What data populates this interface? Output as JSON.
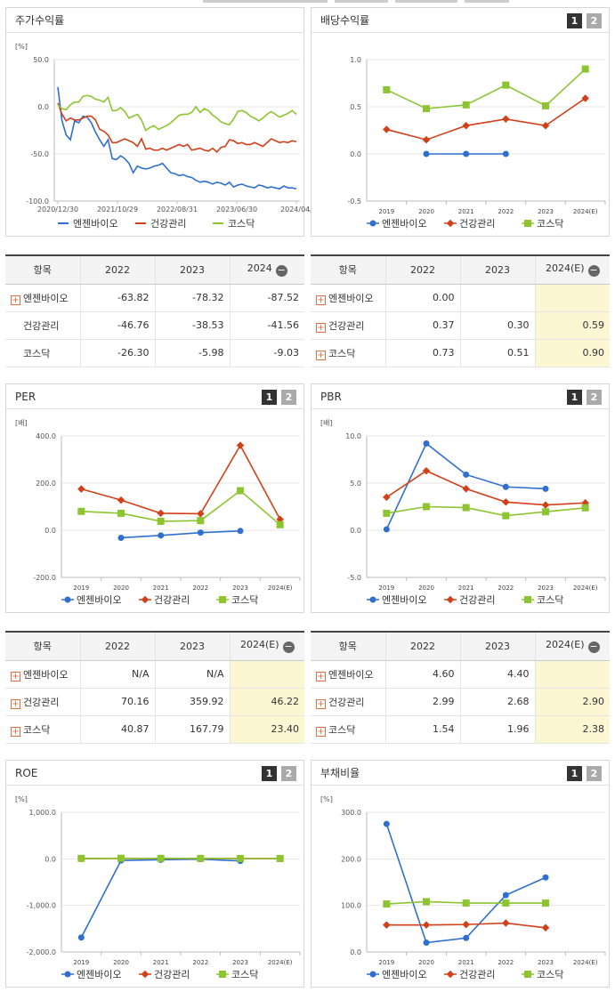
{
  "panels": {
    "price": {
      "title": "주가수익률"
    },
    "dividend": {
      "title": "배당수익률"
    },
    "per": {
      "title": "PER"
    },
    "pbr": {
      "title": "PBR"
    },
    "roe": {
      "title": "ROE"
    },
    "debt": {
      "title": "부채비율"
    }
  },
  "page_buttons": [
    "1",
    "2"
  ],
  "table_header_label": "항목",
  "legend_names": [
    "엔젠바이오",
    "건강관리",
    "코스닥"
  ],
  "colors": {
    "s1": "#2f6fd0",
    "s2": "#d2401a",
    "s3": "#8cc530"
  },
  "chart_data": [
    {
      "id": "price",
      "type": "line",
      "title": "",
      "unit": "[%]",
      "ylim": [
        -100,
        50
      ],
      "yticks": [
        "50.0",
        "0.0",
        "-50.0",
        "-100.0"
      ],
      "ytick_vals": [
        50,
        0,
        -50,
        -100
      ],
      "xticks": [
        "2020/12/30",
        "2021/10/29",
        "2022/08/31",
        "2023/06/30",
        "2024/04/"
      ],
      "n_points": 58,
      "series": [
        {
          "name": "엔젠바이오",
          "values": [
            21,
            -15,
            -30,
            -35,
            -15,
            -17,
            -10,
            -11,
            -17,
            -27,
            -35,
            -42,
            -35,
            -55,
            -56,
            -52,
            -55,
            -60,
            -70,
            -63,
            -65,
            -66,
            -65,
            -63,
            -62,
            -60,
            -65,
            -70,
            -71,
            -73,
            -72,
            -74,
            -75,
            -78,
            -80,
            -79,
            -80,
            -82,
            -80,
            -81,
            -83,
            -80,
            -85,
            -83,
            -82,
            -84,
            -85,
            -86,
            -83,
            -84,
            -86,
            -85,
            -86,
            -87,
            -84,
            -86,
            -86,
            -87
          ]
        },
        {
          "name": "건강관리",
          "values": [
            4,
            -8,
            -15,
            -12,
            -14,
            -14,
            -12,
            -10,
            -10,
            -14,
            -24,
            -26,
            -30,
            -38,
            -38,
            -36,
            -34,
            -36,
            -38,
            -42,
            -34,
            -45,
            -44,
            -46,
            -46,
            -44,
            -46,
            -44,
            -42,
            -40,
            -42,
            -40,
            -46,
            -45,
            -44,
            -46,
            -47,
            -44,
            -48,
            -43,
            -42,
            -35,
            -36,
            -39,
            -38,
            -40,
            -40,
            -38,
            -40,
            -42,
            -38,
            -34,
            -36,
            -38,
            -37,
            -38,
            -36,
            -37
          ]
        },
        {
          "name": "코스닥",
          "values": [
            2,
            -2,
            -3,
            2,
            5,
            5,
            11,
            12,
            11,
            8,
            7,
            5,
            10,
            -4,
            -4,
            -1,
            -5,
            -12,
            -10,
            -8,
            -14,
            -25,
            -22,
            -20,
            -24,
            -22,
            -20,
            -17,
            -13,
            -9,
            -8,
            -8,
            -6,
            0,
            -6,
            -2,
            -4,
            -9,
            -12,
            -16,
            -18,
            -19,
            -13,
            -5,
            -4,
            -6,
            -10,
            -12,
            -15,
            -12,
            -8,
            -5,
            -8,
            -11,
            -9,
            -7,
            -4,
            -8
          ]
        }
      ]
    },
    {
      "id": "dividend",
      "type": "line",
      "title": "",
      "unit": "",
      "ylim": [
        -0.5,
        1.0
      ],
      "yticks": [
        "1.0",
        "0.5",
        "0.0",
        "-0.5"
      ],
      "ytick_vals": [
        1.0,
        0.5,
        0.0,
        -0.5
      ],
      "categories": [
        "2019",
        "2020",
        "2021",
        "2022",
        "2023",
        "2024(E)"
      ],
      "series": [
        {
          "name": "엔젠바이오",
          "values": [
            null,
            0.0,
            0.0,
            0.0,
            null,
            null
          ]
        },
        {
          "name": "건강관리",
          "values": [
            0.26,
            0.15,
            0.3,
            0.37,
            0.3,
            0.59
          ]
        },
        {
          "name": "코스닥",
          "values": [
            0.68,
            0.48,
            0.52,
            0.73,
            0.51,
            0.9
          ]
        }
      ]
    },
    {
      "id": "per",
      "type": "line",
      "title": "",
      "unit": "[배]",
      "ylim": [
        -200,
        400
      ],
      "yticks": [
        "400.0",
        "200.0",
        "0.0",
        "-200.0"
      ],
      "ytick_vals": [
        400,
        200,
        0,
        -200
      ],
      "categories": [
        "2019",
        "2020",
        "2021",
        "2022",
        "2023",
        "2024(E)"
      ],
      "series": [
        {
          "name": "엔젠바이오",
          "values": [
            null,
            -32,
            -22,
            -10,
            -3,
            null
          ]
        },
        {
          "name": "건강관리",
          "values": [
            175,
            128,
            72,
            70.16,
            359.92,
            46.22
          ]
        },
        {
          "name": "코스닥",
          "values": [
            80,
            72,
            38,
            40.87,
            167.79,
            23.4
          ]
        }
      ]
    },
    {
      "id": "pbr",
      "type": "line",
      "title": "",
      "unit": "[배]",
      "ylim": [
        -5,
        10
      ],
      "yticks": [
        "10.0",
        "5.0",
        "0.0",
        "-5.0"
      ],
      "ytick_vals": [
        10,
        5,
        0,
        -5
      ],
      "categories": [
        "2019",
        "2020",
        "2021",
        "2022",
        "2023",
        "2024(E)"
      ],
      "series": [
        {
          "name": "엔젠바이오",
          "values": [
            0.1,
            9.2,
            5.9,
            4.6,
            4.4,
            null
          ]
        },
        {
          "name": "건강관리",
          "values": [
            3.5,
            6.3,
            4.4,
            2.99,
            2.68,
            2.9
          ]
        },
        {
          "name": "코스닥",
          "values": [
            1.8,
            2.5,
            2.4,
            1.54,
            1.96,
            2.38
          ]
        }
      ]
    },
    {
      "id": "roe",
      "type": "line",
      "title": "",
      "unit": "[%]",
      "ylim": [
        -2000,
        1000
      ],
      "yticks": [
        "1,000.0",
        "0.0",
        "-1,000.0",
        "-2,000.0"
      ],
      "ytick_vals": [
        1000,
        0,
        -1000,
        -2000
      ],
      "categories": [
        "2019",
        "2020",
        "2021",
        "2022",
        "2023",
        "2024(E)"
      ],
      "series": [
        {
          "name": "엔젠바이오",
          "values": [
            -1690,
            -35,
            -20,
            -8,
            -45,
            null
          ]
        },
        {
          "name": "건강관리",
          "values": [
            5,
            8,
            8,
            8,
            6,
            6
          ]
        },
        {
          "name": "코스닥",
          "values": [
            10,
            12,
            10,
            9,
            8,
            7
          ]
        }
      ]
    },
    {
      "id": "debt",
      "type": "line",
      "title": "",
      "unit": "[%]",
      "ylim": [
        0,
        300
      ],
      "yticks": [
        "300.0",
        "200.0",
        "100.0",
        "0.0"
      ],
      "ytick_vals": [
        300,
        200,
        100,
        0
      ],
      "categories": [
        "2019",
        "2020",
        "2021",
        "2022",
        "2023",
        "2024(E)"
      ],
      "series": [
        {
          "name": "엔젠바이오",
          "values": [
            275,
            20,
            30,
            122,
            160,
            null
          ]
        },
        {
          "name": "건강관리",
          "values": [
            58,
            58,
            59,
            62,
            52,
            null
          ]
        },
        {
          "name": "코스닥",
          "values": [
            103,
            108,
            105,
            105,
            105,
            null
          ]
        }
      ]
    }
  ],
  "tables": {
    "price": {
      "columns": [
        "2022",
        "2023",
        "2024"
      ],
      "highlight_last": false,
      "rows": [
        {
          "name": "엔젠바이오",
          "plus": true,
          "values": [
            "-63.82",
            "-78.32",
            "-87.52"
          ]
        },
        {
          "name": "건강관리",
          "plus": false,
          "values": [
            "-46.76",
            "-38.53",
            "-41.56"
          ]
        },
        {
          "name": "코스닥",
          "plus": false,
          "values": [
            "-26.30",
            "-5.98",
            "-9.03"
          ]
        }
      ]
    },
    "dividend": {
      "columns": [
        "2022",
        "2023",
        "2024(E)"
      ],
      "highlight_last": true,
      "rows": [
        {
          "name": "엔젠바이오",
          "plus": true,
          "values": [
            "0.00",
            "",
            ""
          ]
        },
        {
          "name": "건강관리",
          "plus": true,
          "values": [
            "0.37",
            "0.30",
            "0.59"
          ]
        },
        {
          "name": "코스닥",
          "plus": true,
          "values": [
            "0.73",
            "0.51",
            "0.90"
          ]
        }
      ]
    },
    "per": {
      "columns": [
        "2022",
        "2023",
        "2024(E)"
      ],
      "highlight_last": true,
      "rows": [
        {
          "name": "엔젠바이오",
          "plus": true,
          "values": [
            "N/A",
            "N/A",
            ""
          ]
        },
        {
          "name": "건강관리",
          "plus": true,
          "values": [
            "70.16",
            "359.92",
            "46.22"
          ]
        },
        {
          "name": "코스닥",
          "plus": true,
          "values": [
            "40.87",
            "167.79",
            "23.40"
          ]
        }
      ]
    },
    "pbr": {
      "columns": [
        "2022",
        "2023",
        "2024(E)"
      ],
      "highlight_last": true,
      "rows": [
        {
          "name": "엔젠바이오",
          "plus": true,
          "values": [
            "4.60",
            "4.40",
            ""
          ]
        },
        {
          "name": "건강관리",
          "plus": true,
          "values": [
            "2.99",
            "2.68",
            "2.90"
          ]
        },
        {
          "name": "코스닥",
          "plus": true,
          "values": [
            "1.54",
            "1.96",
            "2.38"
          ]
        }
      ]
    }
  }
}
